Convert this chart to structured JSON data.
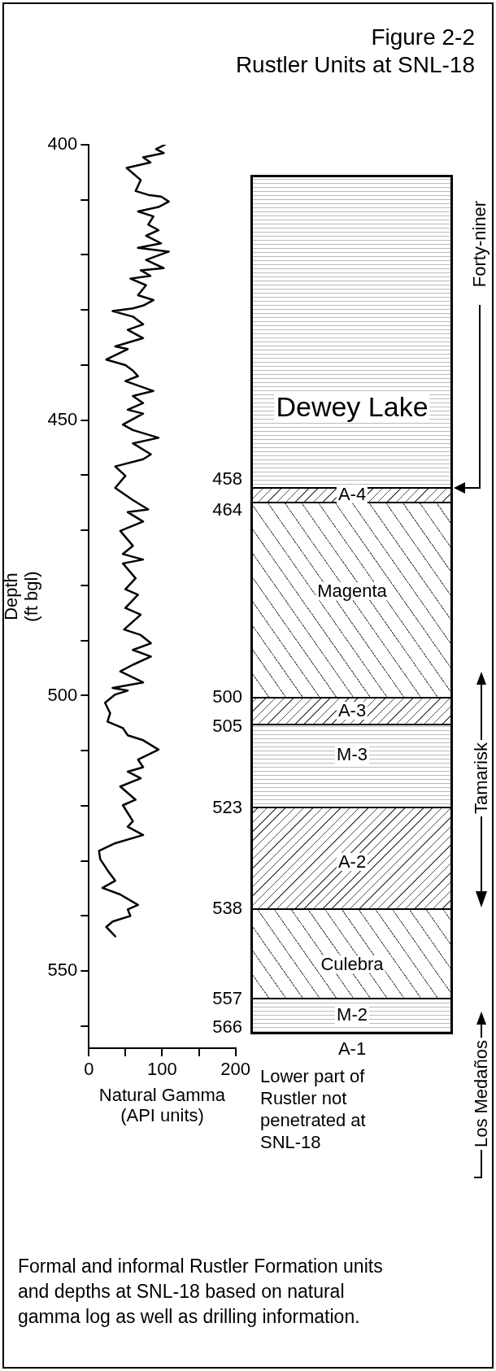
{
  "chart_data": [
    {
      "type": "line",
      "xlabel": "Natural Gamma\n(API units)",
      "ylabel": "Depth\n(ft bgl)",
      "series": [
        {
          "color": "#000000",
          "x": [
            103.7,
            91.6,
            102,
            74,
            84,
            51.5,
            70.7,
            63.7,
            81,
            98.5,
            109,
            95,
            67,
            88,
            81,
            95,
            78,
            98.5,
            67,
            109,
            78,
            102,
            70.7,
            84,
            56.7,
            78,
            67,
            88,
            74,
            60,
            32.4,
            60,
            74,
            53,
            74,
            35.9,
            53,
            23.7,
            49.8,
            60,
            67,
            49.8,
            88,
            60,
            74,
            53,
            74,
            46.4,
            60,
            95,
            60,
            84.6,
            74,
            35.9,
            49.8,
            35.9,
            60,
            81,
            53,
            74,
            42.8,
            60,
            46.4,
            74,
            46.4,
            63.7,
            49.8,
            67,
            49.8,
            70.7,
            48,
            70.7,
            84.6,
            60,
            84.6,
            60,
            42.8,
            74,
            32.4,
            53,
            35.9,
            22,
            29,
            25.4,
            46.4,
            53,
            74,
            95,
            67,
            74,
            53,
            70.7,
            42.8,
            63.7,
            46.4,
            60,
            53,
            74,
            35.9,
            13.8,
            15.5,
            25.4,
            35.9,
            18.5,
            42.8,
            67,
            53,
            56.7,
            32.4,
            23.7,
            35.9
          ],
          "values": [
            400,
            400.8,
            401.5,
            402.3,
            403.2,
            404.2,
            406.4,
            408.4,
            409.1,
            409.4,
            410.3,
            411.3,
            412.1,
            413,
            414.5,
            415.5,
            416.5,
            417.9,
            418.7,
            419.4,
            420.9,
            422.4,
            422.8,
            423.8,
            424.3,
            425.5,
            427.3,
            428.2,
            429.2,
            429.7,
            430.2,
            431.2,
            432.6,
            433.6,
            435.1,
            436.6,
            437.1,
            439,
            440,
            441,
            442,
            442.9,
            444.7,
            445.6,
            446.9,
            448.1,
            448.8,
            450.8,
            451.8,
            453.2,
            454.2,
            456.2,
            457.1,
            458.4,
            460.1,
            462.3,
            464.5,
            466.2,
            466.7,
            468.4,
            470.1,
            472.8,
            474.3,
            475.3,
            476,
            478.7,
            480.7,
            481.7,
            484.1,
            485.3,
            488,
            489,
            490.5,
            491.7,
            492.9,
            494.4,
            495.6,
            497.6,
            498.6,
            499.1,
            499.8,
            501.3,
            503.2,
            504.7,
            505.9,
            507.2,
            508.1,
            509.8,
            511.6,
            513,
            513.8,
            515,
            516.5,
            518.9,
            519.9,
            522.8,
            523.8,
            525.3,
            526.8,
            528.2,
            529.7,
            531.7,
            533.6,
            534.9,
            536.1,
            538,
            538.8,
            540,
            541,
            542,
            543.7
          ]
        }
      ],
      "marker": "none",
      "line_style": "solid",
      "xlim": [
        0,
        200
      ],
      "xticks": [
        0,
        {
          "value": 50,
          "label": null
        },
        100,
        {
          "value": 150,
          "label": null
        },
        200
      ],
      "ylim": [
        564,
        400
      ],
      "yticks": [
        400,
        {
          "value": 410,
          "label": null
        },
        {
          "value": 420,
          "label": null
        },
        {
          "value": 430,
          "label": null
        },
        {
          "value": 440,
          "label": null
        },
        450,
        {
          "value": 460,
          "label": null
        },
        {
          "value": 470,
          "label": null
        },
        {
          "value": 480,
          "label": null
        },
        {
          "value": 490,
          "label": null
        },
        500,
        {
          "value": 510,
          "label": null
        },
        {
          "value": 520,
          "label": null
        },
        {
          "value": 530,
          "label": null
        },
        {
          "value": 540,
          "label": null
        },
        550,
        {
          "value": 560,
          "label": null
        }
      ],
      "annotations": [
        "Formal and informal Rustler Formation units and depths at SNL-18 based on natural gamma log as well as drilling information."
      ]
    },
    {
      "type": "other",
      "title": "Figure 2-2",
      "subtitle": "Rustler Units at SNL-18",
      "categories": [
        "Dewey Lake",
        "A-4",
        "Magenta",
        "A-3",
        "M-3",
        "A-2",
        "Culebra",
        "M-2",
        "A-1"
      ],
      "annotations": [
        "458",
        "464",
        "500",
        "505",
        "523",
        "538",
        "557",
        "566",
        "Lower part of Rustler not penetrated at SNL-18",
        "Forty-niner",
        "Tamarisk",
        "Los Medaños"
      ]
    }
  ]
}
